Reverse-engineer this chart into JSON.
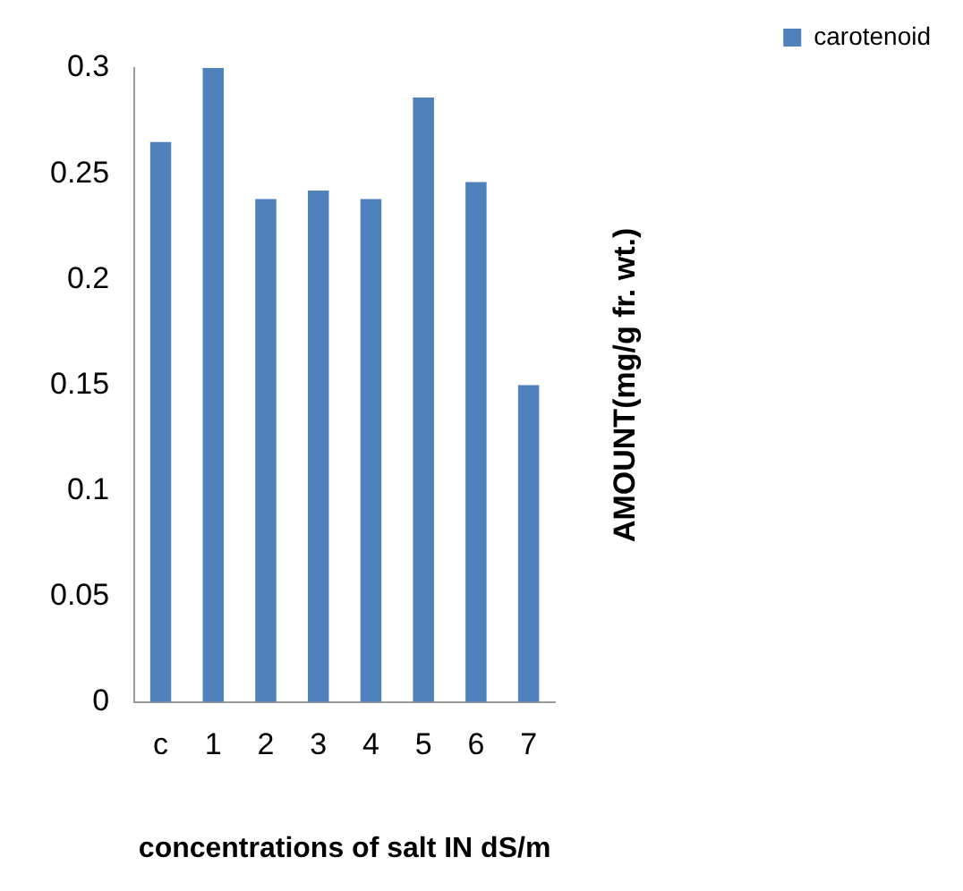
{
  "chart_data": {
    "type": "bar",
    "xlabel": "concentrations of salt IN dS/m",
    "ylabel": "AMOUNT(mg/g fr. wt.)",
    "categories": [
      "c",
      "1",
      "2",
      "3",
      "4",
      "5",
      "6",
      "7"
    ],
    "series": [
      {
        "name": "carotenoid",
        "color": "#4f81bd",
        "values": [
          0.265,
          0.3,
          0.238,
          0.242,
          0.238,
          0.286,
          0.246,
          0.15
        ]
      }
    ],
    "ylim": [
      0,
      0.3
    ],
    "yticks": [
      0,
      0.05,
      0.1,
      0.15,
      0.2,
      0.25,
      0.3
    ],
    "grid": false,
    "legend": "top right"
  }
}
